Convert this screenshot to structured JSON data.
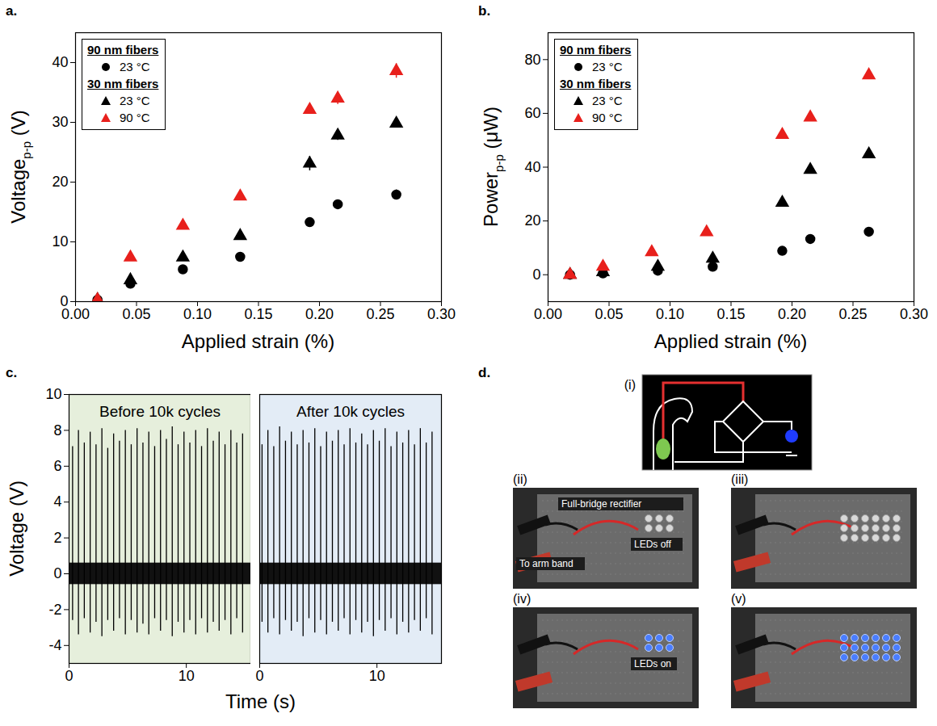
{
  "chart_data": [
    {
      "panel": "a.",
      "type": "scatter",
      "xlabel": "Applied strain (%)",
      "ylabel": {
        "text": "Voltage",
        "subscript": "p-p",
        "unit": "(V)"
      },
      "xlim": [
        0,
        0.3
      ],
      "xticks": [
        {
          "value": 0,
          "label": "0.00"
        },
        {
          "value": 0.05,
          "label": "0.05"
        },
        {
          "value": 0.1,
          "label": "0.10"
        },
        {
          "value": 0.15,
          "label": "0.15"
        },
        {
          "value": 0.2,
          "label": "0.20"
        },
        {
          "value": 0.25,
          "label": "0.25"
        },
        {
          "value": 0.3,
          "label": "0.30"
        }
      ],
      "ylim": [
        0,
        45
      ],
      "yticks": [
        0,
        10,
        20,
        30,
        40
      ],
      "grid": false,
      "legend": "upper left",
      "series": [
        {
          "name": "23 °C",
          "group": "90 nm fibers",
          "color": "#000000",
          "marker": "circle",
          "x": [
            0.018,
            0.045,
            0.088,
            0.135,
            0.192,
            0.215,
            0.263
          ],
          "values": [
            0.3,
            3.0,
            5.4,
            7.5,
            13.3,
            16.3,
            17.9
          ],
          "errors": [
            0.1,
            0.4,
            0.3,
            0.3,
            0.4,
            0.4,
            0.8
          ]
        },
        {
          "name": "23 °C",
          "group": "30 nm fibers",
          "color": "#000000",
          "marker": "triangle",
          "x": [
            0.018,
            0.045,
            0.088,
            0.135,
            0.192,
            0.215,
            0.263
          ],
          "values": [
            0.3,
            3.6,
            7.4,
            11.0,
            23.1,
            27.8,
            29.8
          ],
          "errors": [
            0.1,
            0.3,
            0.3,
            0.3,
            1.2,
            0.8,
            0.3
          ]
        },
        {
          "name": "90 °C",
          "group": "30 nm fibers",
          "color": "#e8201c",
          "marker": "triangle",
          "x": [
            0.018,
            0.045,
            0.088,
            0.135,
            0.192,
            0.215,
            0.263
          ],
          "values": [
            0.3,
            7.4,
            12.7,
            17.6,
            32.1,
            34.0,
            38.6
          ],
          "errors": [
            0.1,
            0.3,
            0.5,
            0.3,
            0.4,
            1.0,
            1.2
          ]
        }
      ]
    },
    {
      "panel": "b.",
      "type": "scatter",
      "xlabel": "Applied strain (%)",
      "ylabel": {
        "text": "Power",
        "subscript": "p-p",
        "unit": "(μW)"
      },
      "xlim": [
        0,
        0.3
      ],
      "xticks": [
        {
          "value": 0,
          "label": "0.00"
        },
        {
          "value": 0.05,
          "label": "0.05"
        },
        {
          "value": 0.1,
          "label": "0.10"
        },
        {
          "value": 0.15,
          "label": "0.15"
        },
        {
          "value": 0.2,
          "label": "0.20"
        },
        {
          "value": 0.25,
          "label": "0.25"
        },
        {
          "value": 0.3,
          "label": "0.30"
        }
      ],
      "ylim": [
        -10,
        90
      ],
      "yticks": [
        0,
        20,
        40,
        60,
        80
      ],
      "grid": false,
      "legend": "upper left",
      "series": [
        {
          "name": "23 °C",
          "group": "90 nm fibers",
          "color": "#000000",
          "marker": "circle",
          "x": [
            0.018,
            0.045,
            0.09,
            0.135,
            0.192,
            0.215,
            0.263
          ],
          "values": [
            0,
            0.5,
            1.5,
            3.0,
            8.9,
            13.3,
            16.0
          ]
        },
        {
          "name": "23 °C",
          "group": "30 nm fibers",
          "color": "#000000",
          "marker": "triangle",
          "x": [
            0.018,
            0.045,
            0.09,
            0.135,
            0.192,
            0.215,
            0.263
          ],
          "values": [
            0,
            1.0,
            3.0,
            6.0,
            26.8,
            39.0,
            44.8
          ]
        },
        {
          "name": "90 °C",
          "group": "30 nm fibers",
          "color": "#e8201c",
          "marker": "triangle",
          "x": [
            0.018,
            0.045,
            0.085,
            0.13,
            0.192,
            0.215,
            0.263
          ],
          "values": [
            0,
            3.0,
            8.4,
            15.8,
            52.0,
            58.5,
            74.2
          ]
        }
      ]
    },
    {
      "panel": "c.",
      "type": "spikes",
      "xlabel": "Time (s)",
      "ylabel": "Voltage (V)",
      "xlim": [
        0,
        15.5
      ],
      "xticks": [
        0,
        10
      ],
      "ylim": [
        -5,
        10
      ],
      "yticks": [
        -4,
        -2,
        0,
        2,
        4,
        6,
        8,
        10
      ],
      "noise_band": [
        -0.6,
        0.6
      ],
      "segments": [
        {
          "name": "Before 10k cycles",
          "color": "#e6efdc",
          "x": [
            0.3,
            0.8,
            1.3,
            1.8,
            2.3,
            2.8,
            3.3,
            3.8,
            4.3,
            4.8,
            5.3,
            5.8,
            6.3,
            6.8,
            7.3,
            7.8,
            8.3,
            8.8,
            9.3,
            9.8,
            10.3,
            10.8,
            11.3,
            11.8,
            12.3,
            12.8,
            13.3,
            13.8,
            14.3,
            14.8
          ],
          "peaks": [
            7.1,
            8.0,
            7.3,
            7.9,
            7.2,
            8.1,
            7.0,
            7.8,
            7.4,
            8.0,
            7.2,
            8.1,
            7.3,
            7.9,
            7.1,
            8.0,
            7.5,
            8.2,
            7.2,
            7.9,
            7.3,
            8.0,
            7.1,
            8.1,
            7.4,
            7.9,
            7.2,
            8.0,
            7.3,
            7.8
          ],
          "troughs": [
            -2.6,
            -3.4,
            -2.5,
            -3.3,
            -2.7,
            -3.5,
            -2.6,
            -3.2,
            -2.5,
            -3.4,
            -2.6,
            -3.3,
            -2.8,
            -3.4,
            -2.5,
            -3.2,
            -2.6,
            -3.5,
            -2.7,
            -3.3,
            -2.6,
            -3.4,
            -2.5,
            -3.3,
            -2.7,
            -3.2,
            -2.6,
            -3.4,
            -2.5,
            -3.3
          ]
        },
        {
          "name": "After 10k cycles",
          "color": "#e3ecf6",
          "x": [
            0.2,
            0.7,
            1.2,
            1.7,
            2.2,
            2.7,
            3.2,
            3.7,
            4.2,
            4.7,
            5.2,
            5.7,
            6.2,
            6.7,
            7.2,
            7.7,
            8.2,
            8.7,
            9.2,
            9.7,
            10.2,
            10.7,
            11.2,
            11.7,
            12.2,
            12.7,
            13.2,
            13.7,
            14.2,
            14.7
          ],
          "peaks": [
            7.2,
            8.0,
            7.1,
            8.2,
            7.4,
            7.9,
            7.2,
            8.0,
            7.3,
            8.1,
            7.1,
            7.9,
            7.4,
            8.0,
            7.2,
            8.1,
            7.3,
            7.8,
            7.2,
            8.0,
            7.4,
            8.1,
            7.1,
            7.9,
            7.3,
            8.0,
            7.2,
            8.1,
            7.3,
            7.9
          ],
          "troughs": [
            -2.7,
            -3.3,
            -2.5,
            -3.4,
            -2.6,
            -3.2,
            -2.7,
            -3.5,
            -2.5,
            -3.3,
            -2.6,
            -3.4,
            -2.7,
            -3.2,
            -2.5,
            -3.4,
            -2.6,
            -3.3,
            -2.7,
            -3.5,
            -2.6,
            -3.2,
            -2.5,
            -3.4,
            -2.7,
            -3.3,
            -2.6,
            -3.2,
            -2.5,
            -3.4
          ]
        }
      ]
    }
  ],
  "diagram": {
    "panel": "d.",
    "parts": [
      {
        "label": "(i)"
      },
      {
        "label": "(ii)",
        "annotations": [
          "Full-bridge rectifier",
          "To arm band",
          "LEDs off"
        ]
      },
      {
        "label": "(iii)"
      },
      {
        "label": "(iv)",
        "annotations": [
          "LEDs on"
        ]
      },
      {
        "label": "(v)"
      }
    ]
  }
}
